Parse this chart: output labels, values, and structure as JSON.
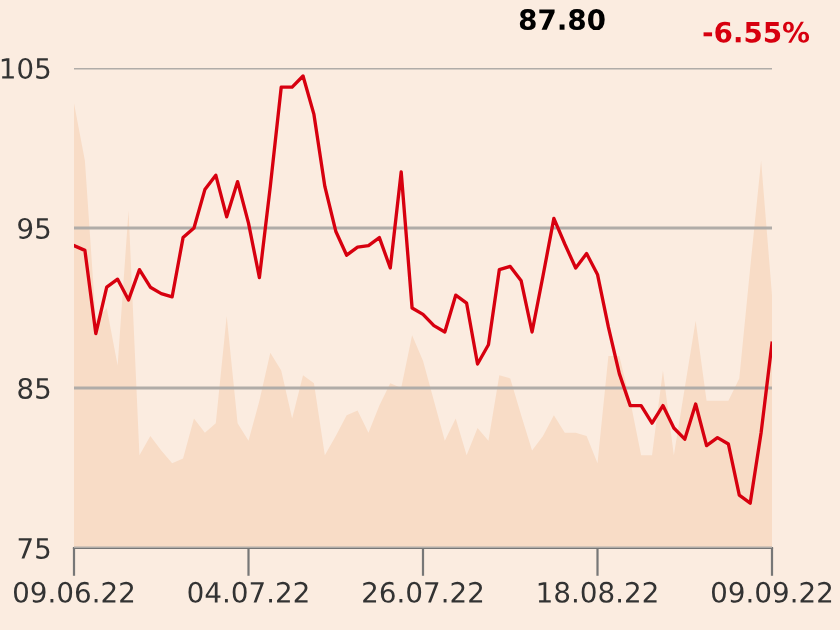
{
  "chart_data": {
    "type": "line",
    "annotations": [
      "87.80",
      "-6.55%"
    ],
    "categories": [
      "09.06.22",
      null,
      null,
      null,
      null,
      null,
      null,
      null,
      null,
      null,
      null,
      null,
      null,
      null,
      null,
      null,
      "04.07.22",
      null,
      null,
      null,
      null,
      null,
      null,
      null,
      null,
      null,
      null,
      null,
      null,
      null,
      null,
      null,
      "26.07.22",
      null,
      null,
      null,
      null,
      null,
      null,
      null,
      null,
      null,
      null,
      null,
      null,
      null,
      null,
      null,
      "18.08.22",
      null,
      null,
      null,
      null,
      null,
      null,
      null,
      null,
      null,
      null,
      null,
      null,
      null,
      null,
      null,
      "09.09.22"
    ],
    "ylim": [
      75,
      105
    ],
    "yticks": [
      75,
      85,
      95,
      105
    ],
    "grid": "y",
    "marker": "none",
    "line_style": "solid",
    "series": [
      {
        "type": "area",
        "color": "#f8dcc6",
        "values": [
          102.8,
          99.2,
          89.2,
          90.0,
          86.4,
          96.1,
          80.8,
          82.0,
          81.1,
          80.3,
          80.6,
          83.1,
          82.2,
          82.8,
          89.5,
          82.8,
          81.7,
          84.2,
          87.2,
          86.1,
          83.1,
          85.8,
          85.3,
          80.8,
          82.0,
          83.3,
          83.6,
          82.2,
          83.9,
          85.3,
          85.0,
          88.3,
          86.7,
          84.2,
          81.7,
          83.1,
          80.8,
          82.5,
          81.7,
          85.8,
          85.6,
          83.3,
          81.1,
          82.0,
          83.3,
          82.2,
          82.2,
          82.0,
          80.3,
          87.0,
          87.0,
          84.2,
          80.8,
          80.8,
          86.1,
          80.8,
          85.0,
          89.2,
          84.2,
          84.2,
          84.2,
          85.6,
          92.5,
          99.2,
          90.8
        ]
      },
      {
        "color": "#d7000f",
        "values": [
          93.9,
          93.6,
          88.4,
          91.3,
          91.8,
          90.5,
          92.4,
          91.3,
          90.9,
          90.7,
          94.4,
          95.0,
          97.4,
          98.3,
          95.7,
          97.9,
          95.3,
          91.9,
          97.6,
          103.8,
          103.8,
          104.5,
          102.1,
          97.6,
          94.8,
          93.3,
          93.8,
          93.9,
          94.4,
          92.5,
          98.5,
          90.0,
          89.6,
          88.9,
          88.5,
          90.8,
          90.3,
          86.5,
          87.7,
          92.4,
          92.6,
          91.7,
          88.5,
          92.0,
          95.6,
          94.0,
          92.5,
          93.4,
          92.1,
          88.8,
          85.9,
          83.9,
          83.9,
          82.8,
          83.9,
          82.5,
          81.8,
          84.0,
          81.4,
          81.9,
          81.5,
          78.3,
          77.8,
          82.2,
          87.8
        ]
      }
    ]
  }
}
